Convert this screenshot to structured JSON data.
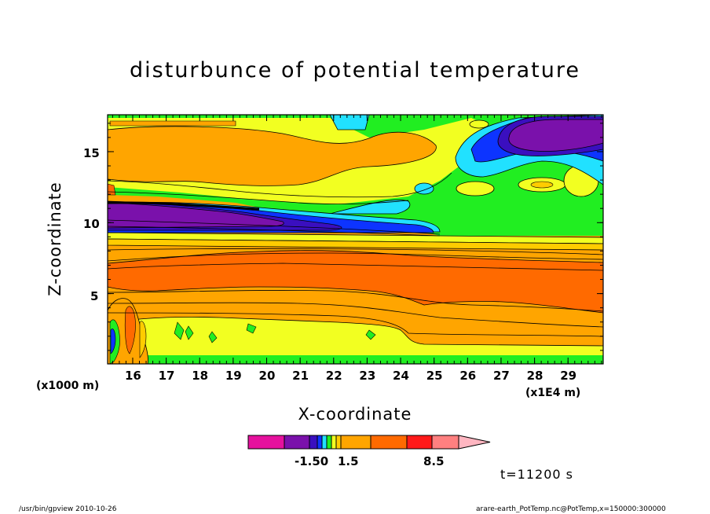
{
  "chart_data": {
    "type": "heatmap",
    "title": "disturbunce of potential temperature",
    "xlabel": "X-coordinate",
    "ylabel": "Z-coordinate",
    "x_unit": "(x1E4 m)",
    "y_unit": "(x1000 m)",
    "xlim": [
      15.25,
      30.05
    ],
    "ylim": [
      0.05,
      17.6
    ],
    "x_ticks": [
      "16",
      "17",
      "18",
      "19",
      "20",
      "21",
      "22",
      "23",
      "24",
      "25",
      "26",
      "27",
      "28",
      "29"
    ],
    "y_ticks": [
      "5",
      "10",
      "15"
    ],
    "colorbar": {
      "colors": [
        "#e6119e",
        "#7a11ab",
        "#3a0fbf",
        "#0d34ff",
        "#21e1ff",
        "#21ee21",
        "#f2ff21",
        "#ffcc00",
        "#ffa500",
        "#ff6a00",
        "#ff1a1a",
        "#ff8080",
        "#ffb6c1"
      ],
      "labels": [
        "-1.50",
        "1.5",
        "8.5"
      ]
    },
    "annotation": "t=11200 s"
  },
  "footer": {
    "left": "/usr/bin/gpview   2010-10-26",
    "right": "arare-earth_PotTemp.nc@PotTemp,x=150000:300000"
  }
}
